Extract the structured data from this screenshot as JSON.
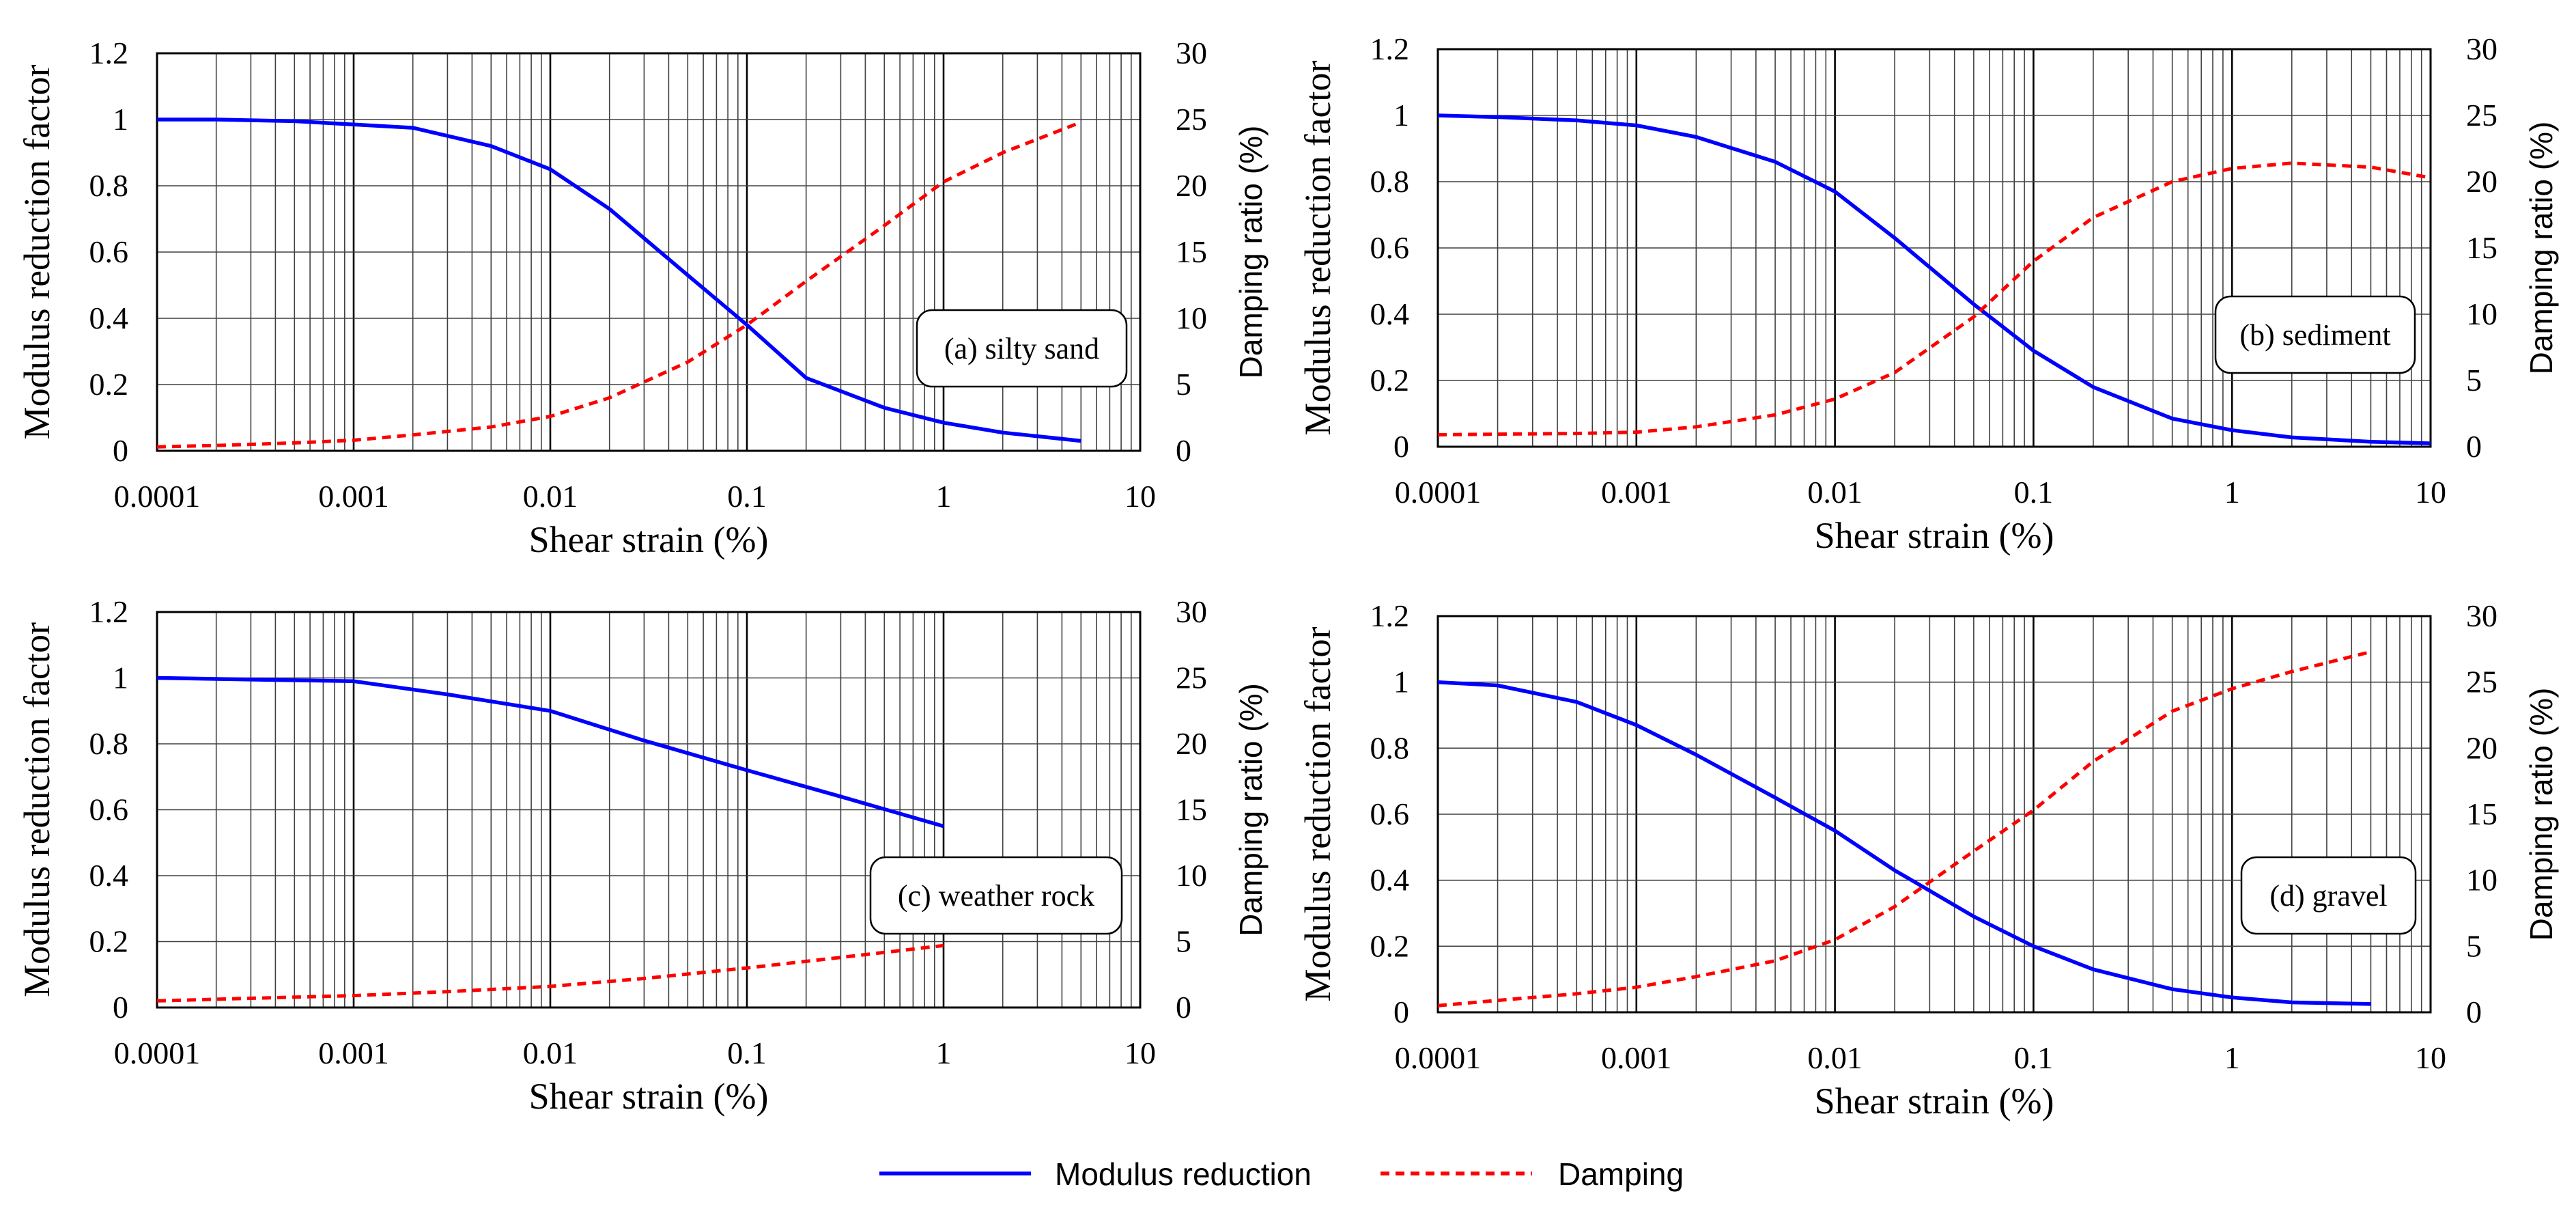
{
  "colors": {
    "modulus": "#0000ff",
    "damping": "#ff0000",
    "grid": "#404040",
    "axis": "#000000"
  },
  "legend": {
    "items": [
      {
        "name": "Modulus reduction",
        "style": "solid",
        "color": "#0000ff"
      },
      {
        "name": "Damping",
        "style": "dashed",
        "color": "#ff0000"
      }
    ]
  },
  "chart_data": [
    {
      "id": "a",
      "type": "line",
      "annotation": "(a) silty sand",
      "xlabel": "Shear strain (%)",
      "ylabel": "Modulus reduction factor",
      "y2label": "Damping ratio (%)",
      "xscale": "log",
      "xlim": [
        0.0001,
        10
      ],
      "xticks": [
        "0.0001",
        "0.001",
        "0.01",
        "0.1",
        "1",
        "10"
      ],
      "ylim": [
        0,
        1.2
      ],
      "yticks": [
        "0",
        "0.2",
        "0.4",
        "0.6",
        "0.8",
        "1",
        "1.2"
      ],
      "y2lim": [
        0,
        30
      ],
      "y2ticks": [
        "0",
        "5",
        "10",
        "15",
        "20",
        "25",
        "30"
      ],
      "series": [
        {
          "name": "Modulus reduction",
          "axis": "left",
          "x": [
            0.0001,
            0.0002,
            0.0005,
            0.001,
            0.002,
            0.005,
            0.01,
            0.02,
            0.05,
            0.1,
            0.2,
            0.5,
            1,
            2,
            5
          ],
          "y": [
            1.0,
            1.0,
            0.995,
            0.985,
            0.975,
            0.92,
            0.85,
            0.73,
            0.53,
            0.38,
            0.22,
            0.13,
            0.085,
            0.055,
            0.03
          ]
        },
        {
          "name": "Damping",
          "axis": "right",
          "x": [
            0.0001,
            0.0002,
            0.0005,
            0.001,
            0.002,
            0.005,
            0.01,
            0.02,
            0.05,
            0.1,
            0.2,
            0.5,
            1,
            2,
            5
          ],
          "y": [
            0.3,
            0.4,
            0.6,
            0.8,
            1.2,
            1.8,
            2.6,
            4.0,
            6.7,
            9.5,
            12.8,
            17.0,
            20.3,
            22.5,
            24.8
          ]
        }
      ]
    },
    {
      "id": "b",
      "type": "line",
      "annotation": "(b) sediment",
      "xlabel": "Shear strain (%)",
      "ylabel": "Modulus reduction factor",
      "y2label": "Damping ratio (%)",
      "xscale": "log",
      "xlim": [
        0.0001,
        10
      ],
      "xticks": [
        "0.0001",
        "0.001",
        "0.01",
        "0.1",
        "1",
        "10"
      ],
      "ylim": [
        0,
        1.2
      ],
      "yticks": [
        "0",
        "0.2",
        "0.4",
        "0.6",
        "0.8",
        "1",
        "1.2"
      ],
      "y2lim": [
        0,
        30
      ],
      "y2ticks": [
        "0",
        "5",
        "10",
        "15",
        "20",
        "25",
        "30"
      ],
      "series": [
        {
          "name": "Modulus reduction",
          "axis": "left",
          "x": [
            0.0001,
            0.0002,
            0.0005,
            0.001,
            0.002,
            0.005,
            0.01,
            0.02,
            0.05,
            0.1,
            0.2,
            0.5,
            1,
            2,
            5,
            10
          ],
          "y": [
            1.0,
            0.995,
            0.985,
            0.97,
            0.935,
            0.86,
            0.77,
            0.63,
            0.43,
            0.29,
            0.18,
            0.085,
            0.05,
            0.028,
            0.015,
            0.01
          ]
        },
        {
          "name": "Damping",
          "axis": "right",
          "x": [
            0.0001,
            0.0002,
            0.0005,
            0.001,
            0.002,
            0.005,
            0.01,
            0.02,
            0.05,
            0.1,
            0.2,
            0.5,
            1,
            2,
            5,
            10
          ],
          "y": [
            0.9,
            0.95,
            1.0,
            1.1,
            1.5,
            2.4,
            3.6,
            5.6,
            9.8,
            14.0,
            17.3,
            20.0,
            21.0,
            21.4,
            21.1,
            20.3
          ]
        }
      ]
    },
    {
      "id": "c",
      "type": "line",
      "annotation": "(c) weather rock",
      "xlabel": "Shear strain (%)",
      "ylabel": "Modulus reduction factor",
      "y2label": "Damping ratio (%)",
      "xscale": "log",
      "xlim": [
        0.0001,
        10
      ],
      "xticks": [
        "0.0001",
        "0.001",
        "0.01",
        "0.1",
        "1",
        "10"
      ],
      "ylim": [
        0,
        1.2
      ],
      "yticks": [
        "0",
        "0.2",
        "0.4",
        "0.6",
        "0.8",
        "1",
        "1.2"
      ],
      "y2lim": [
        0,
        30
      ],
      "y2ticks": [
        "0",
        "5",
        "10",
        "15",
        "20",
        "25",
        "30"
      ],
      "series": [
        {
          "name": "Modulus reduction",
          "axis": "left",
          "x": [
            0.0001,
            0.0003,
            0.001,
            0.003,
            0.01,
            0.03,
            0.1,
            0.3,
            1
          ],
          "y": [
            1.0,
            0.995,
            0.99,
            0.95,
            0.9,
            0.81,
            0.72,
            0.64,
            0.55
          ]
        },
        {
          "name": "Damping",
          "axis": "right",
          "x": [
            0.0001,
            0.0003,
            0.001,
            0.003,
            0.01,
            0.03,
            0.1,
            0.3,
            1
          ],
          "y": [
            0.5,
            0.7,
            0.9,
            1.2,
            1.6,
            2.2,
            3.0,
            3.8,
            4.7
          ]
        }
      ]
    },
    {
      "id": "d",
      "type": "line",
      "annotation": "(d) gravel",
      "xlabel": "Shear strain (%)",
      "ylabel": "Modulus reduction factor",
      "y2label": "Damping ratio (%)",
      "xscale": "log",
      "xlim": [
        0.0001,
        10
      ],
      "xticks": [
        "0.0001",
        "0.001",
        "0.01",
        "0.1",
        "1",
        "10"
      ],
      "ylim": [
        0,
        1.2
      ],
      "yticks": [
        "0",
        "0.2",
        "0.4",
        "0.6",
        "0.8",
        "1",
        "1.2"
      ],
      "y2lim": [
        0,
        30
      ],
      "y2ticks": [
        "0",
        "5",
        "10",
        "15",
        "20",
        "25",
        "30"
      ],
      "series": [
        {
          "name": "Modulus reduction",
          "axis": "left",
          "x": [
            0.0001,
            0.0002,
            0.0005,
            0.001,
            0.002,
            0.005,
            0.01,
            0.02,
            0.05,
            0.1,
            0.2,
            0.5,
            1,
            2,
            5
          ],
          "y": [
            1.0,
            0.99,
            0.94,
            0.87,
            0.78,
            0.65,
            0.55,
            0.43,
            0.29,
            0.2,
            0.13,
            0.07,
            0.045,
            0.03,
            0.025
          ]
        },
        {
          "name": "Damping",
          "axis": "right",
          "x": [
            0.0001,
            0.0002,
            0.0005,
            0.001,
            0.002,
            0.005,
            0.01,
            0.02,
            0.05,
            0.1,
            0.2,
            0.5,
            1,
            2,
            5
          ],
          "y": [
            0.5,
            0.9,
            1.4,
            1.9,
            2.7,
            3.9,
            5.5,
            8.0,
            12.2,
            15.3,
            19.0,
            22.8,
            24.5,
            25.8,
            27.3
          ]
        }
      ]
    }
  ]
}
